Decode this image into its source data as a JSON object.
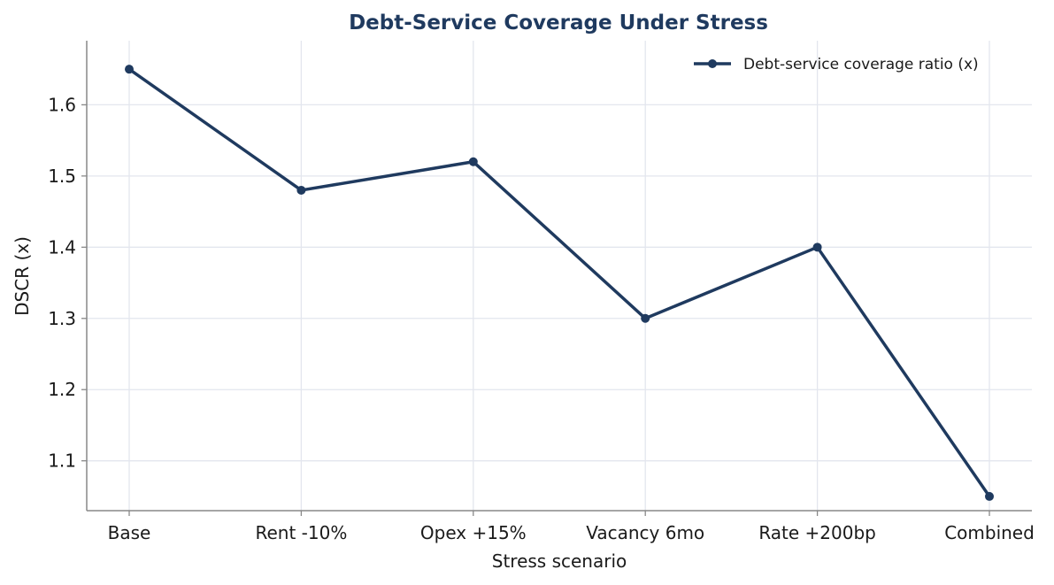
{
  "chart_data": {
    "type": "line",
    "title": "Debt-Service Coverage Under Stress",
    "xlabel": "Stress scenario",
    "ylabel": "DSCR (x)",
    "categories": [
      "Base",
      "Rent -10%",
      "Opex +15%",
      "Vacancy 6mo",
      "Rate +200bp",
      "Combined"
    ],
    "series": [
      {
        "name": "Debt-service coverage ratio (x)",
        "values": [
          1.65,
          1.48,
          1.52,
          1.3,
          1.4,
          1.05
        ]
      }
    ],
    "ylim": [
      1.03,
      1.69
    ],
    "yticks": [
      "1.1",
      "1.2",
      "1.3",
      "1.4",
      "1.5",
      "1.6"
    ],
    "grid": true,
    "legend_position": "top-right",
    "colors": {
      "series": "#1f3a5f",
      "title": "#1f3a5f",
      "grid": "#e3e6ee",
      "axis": "#888888"
    }
  }
}
